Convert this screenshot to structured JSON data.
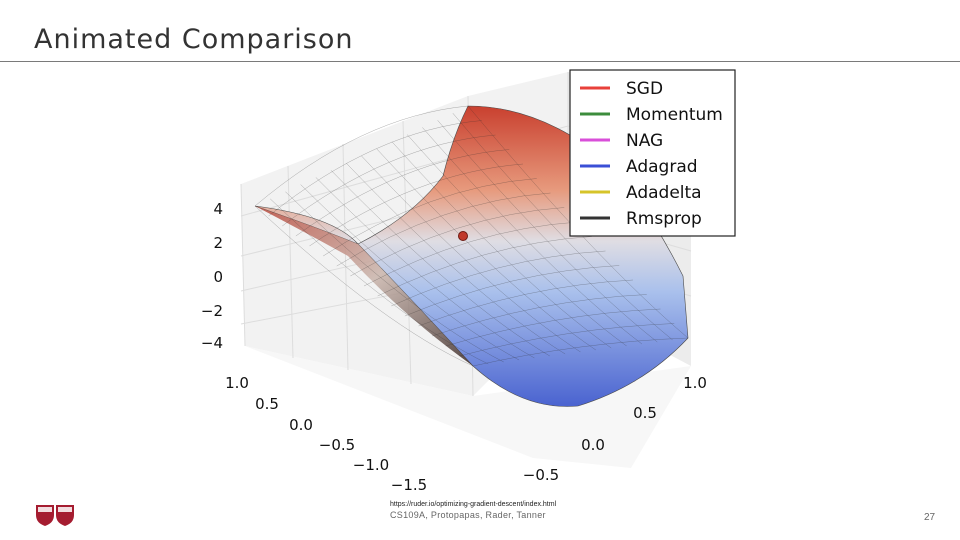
{
  "slide": {
    "title": "Animated Comparison",
    "url": "https://ruder.io/optimizing-gradient-descent/index.html",
    "footer": "CS109A, Protopapas, Rader, Tanner",
    "page_number": "27"
  },
  "chart_data": {
    "type": "surface3d",
    "function": "z = x^2 - y^2",
    "z_ticks": [
      "4",
      "2",
      "0",
      "−2",
      "−4"
    ],
    "y_ticks": [
      "1.0",
      "0.5",
      "0.0",
      "−0.5",
      "−1.0",
      "−1.5"
    ],
    "x_ticks": [
      "1.0",
      "0.5",
      "0.0",
      "−0.5"
    ],
    "colormap": "coolwarm",
    "legend": {
      "placement": "top-right",
      "entries": [
        {
          "label": "SGD",
          "color": "#e8403a"
        },
        {
          "label": "Momentum",
          "color": "#3c8c3c"
        },
        {
          "label": "NAG",
          "color": "#d94fd9"
        },
        {
          "label": "Adagrad",
          "color": "#3a4fd6"
        },
        {
          "label": "Adadelta",
          "color": "#d6c42a"
        },
        {
          "label": "Rmsprop",
          "color": "#333333"
        }
      ]
    },
    "marker": {
      "color": "#c0392b"
    }
  }
}
